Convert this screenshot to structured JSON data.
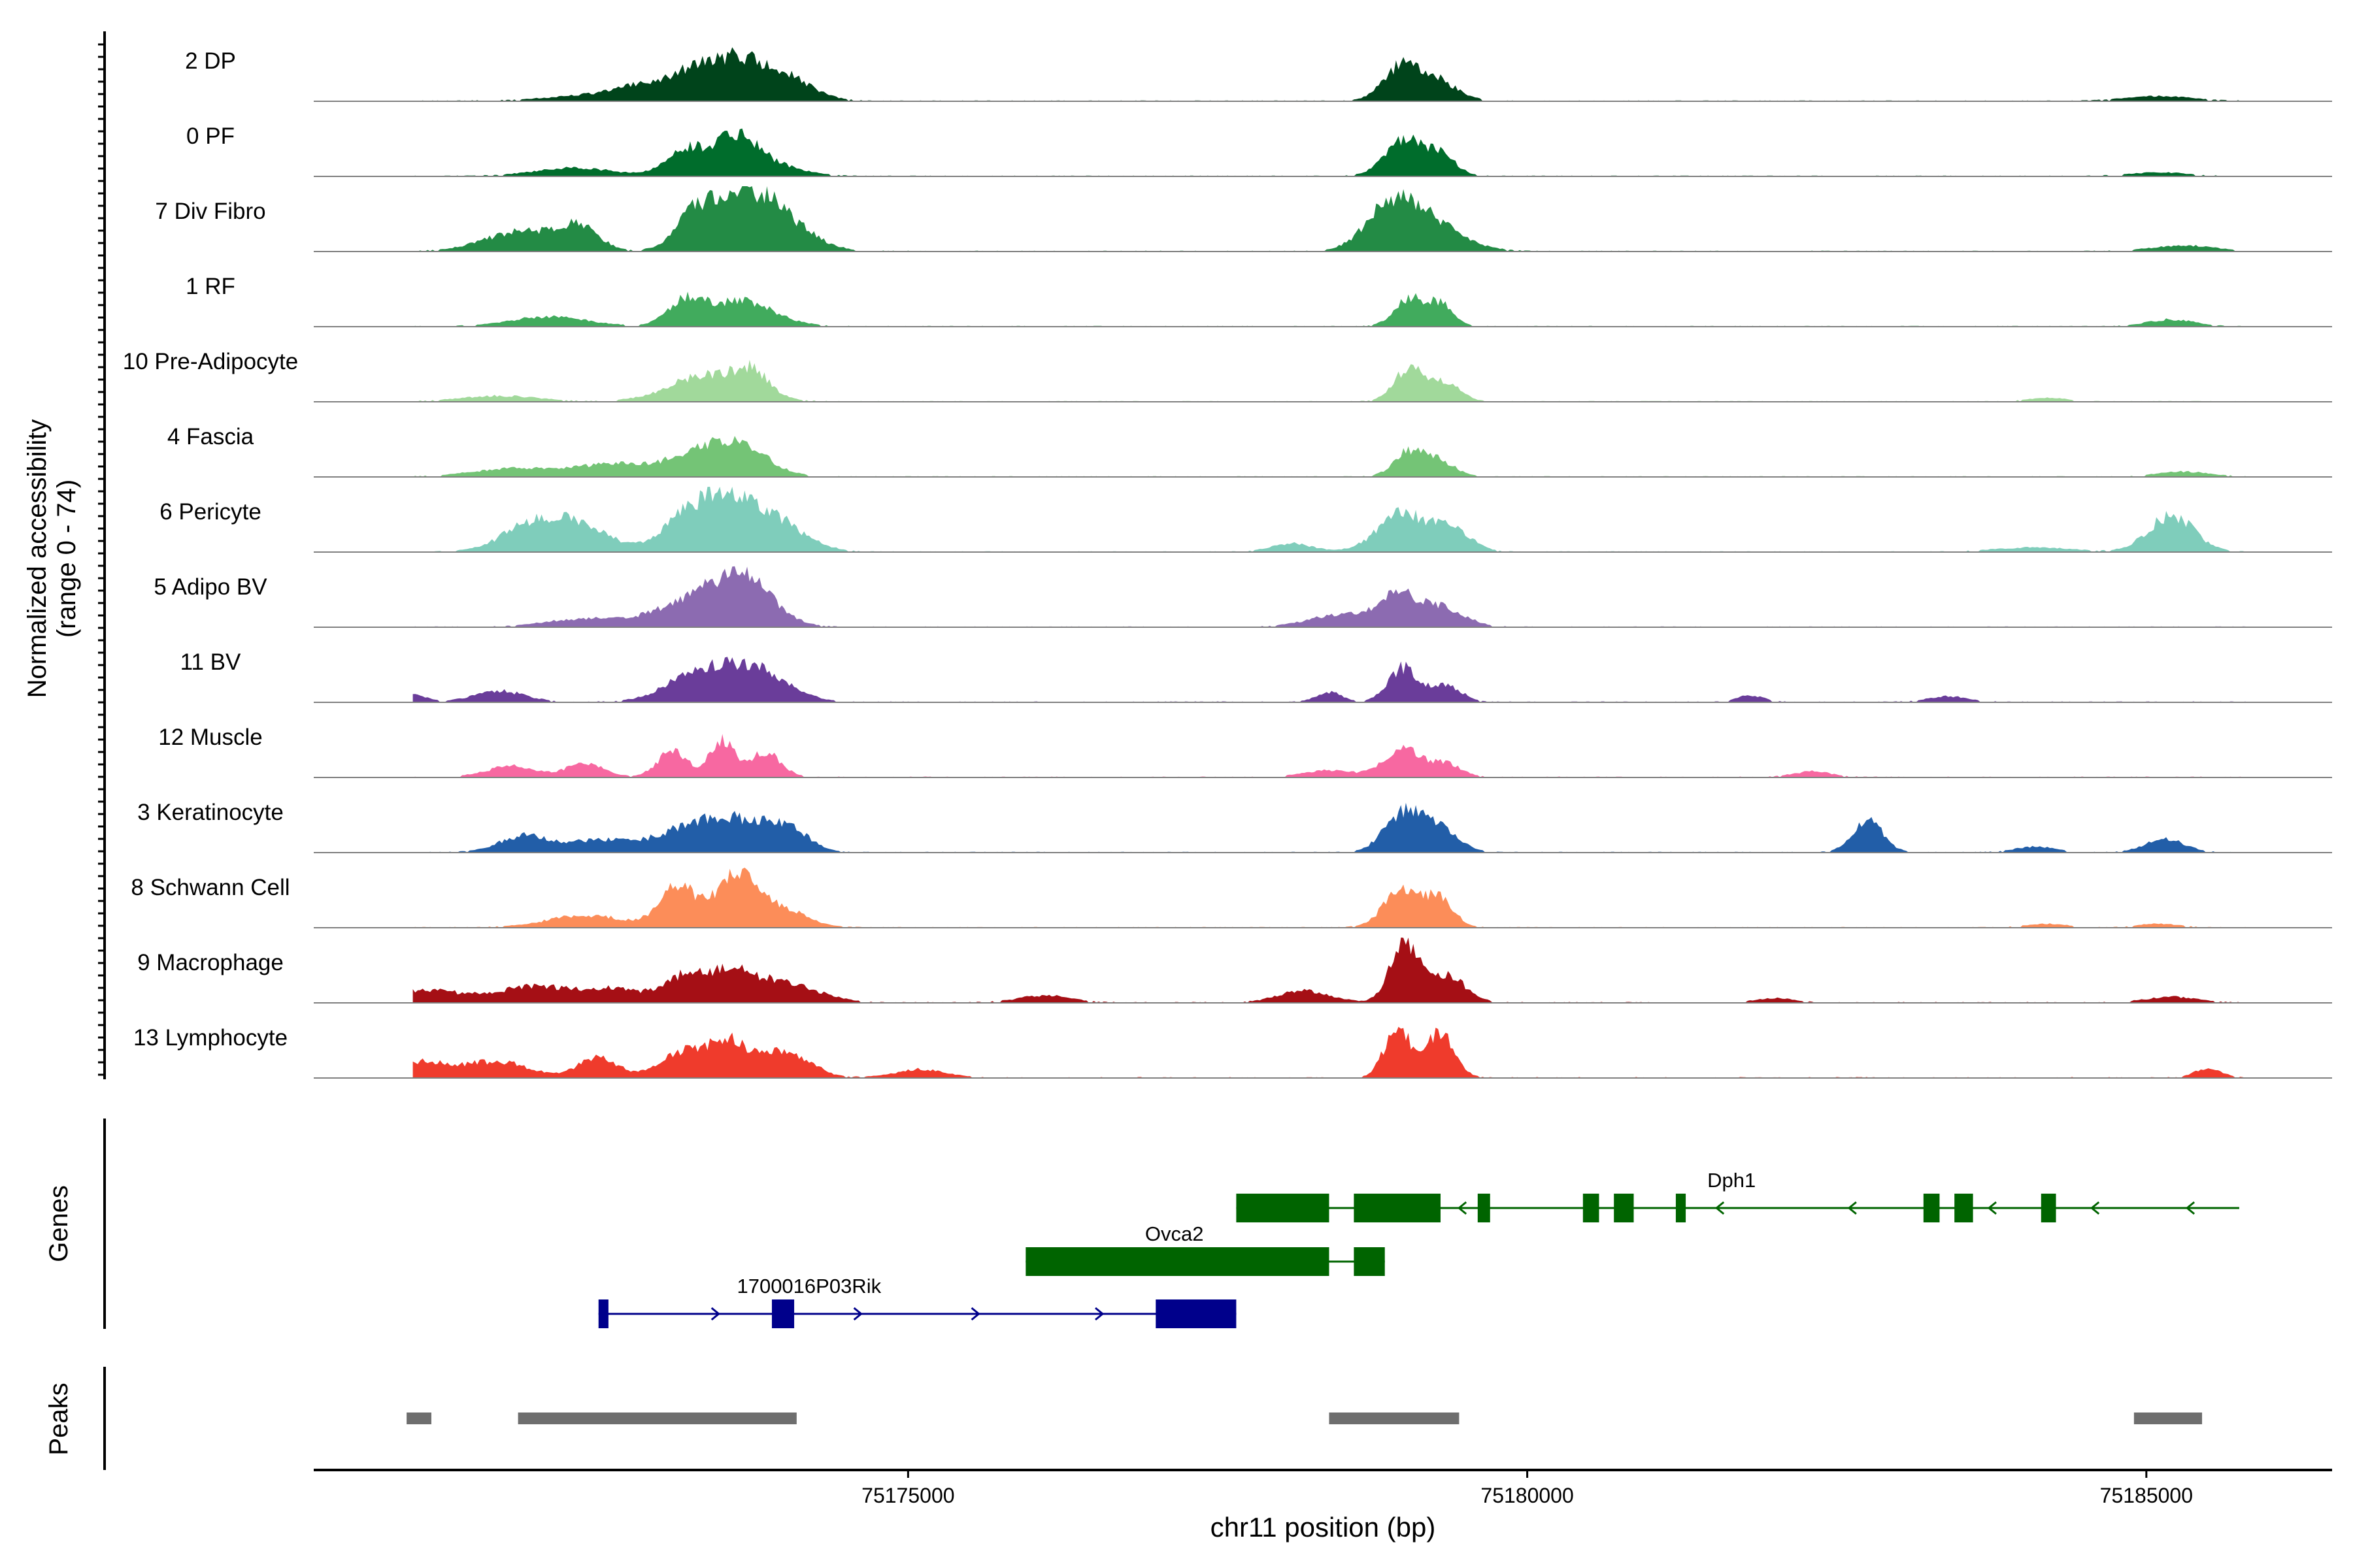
{
  "chart_data": {
    "type": "area",
    "title": "",
    "chromosome": "chr11",
    "xlabel": "chr11 position (bp)",
    "xlim": [
      75170200,
      75186500
    ],
    "x_ticks": [
      75175000,
      75180000,
      75185000
    ],
    "x_tick_labels": [
      "75175000",
      "75180000",
      "75185000"
    ],
    "ylabel_line1": "Normalized accessibility",
    "ylabel_line2": "(range 0 - 74)",
    "ylim": [
      0,
      74
    ],
    "genes_label": "Genes",
    "peaks_label": "Peaks",
    "tracks": [
      {
        "name": "2 DP",
        "color": "#00441b",
        "noise": 0.05,
        "peaks": [
          [
            75172600,
            400,
            0.1
          ],
          [
            75173000,
            250,
            0.22
          ],
          [
            75173300,
            140,
            0.35
          ],
          [
            75173600,
            160,
            0.52
          ],
          [
            75173950,
            230,
            0.42
          ],
          [
            75179000,
            150,
            0.55
          ],
          [
            75179300,
            150,
            0.26
          ],
          [
            75185100,
            250,
            0.07
          ]
        ]
      },
      {
        "name": "0 PF",
        "color": "#006d2c",
        "noise": 0.05,
        "peaks": [
          [
            75172300,
            300,
            0.12
          ],
          [
            75173200,
            160,
            0.4
          ],
          [
            75173600,
            170,
            0.5
          ],
          [
            75173850,
            250,
            0.18
          ],
          [
            75179000,
            150,
            0.55
          ],
          [
            75179300,
            120,
            0.3
          ],
          [
            75185100,
            220,
            0.05
          ]
        ]
      },
      {
        "name": "7 Div Fibro",
        "color": "#238b45",
        "noise": 0.08,
        "peaks": [
          [
            75171900,
            300,
            0.3
          ],
          [
            75172350,
            150,
            0.32
          ],
          [
            75173300,
            170,
            0.55
          ],
          [
            75173700,
            230,
            0.8
          ],
          [
            75174050,
            220,
            0.3
          ],
          [
            75178900,
            200,
            0.6
          ],
          [
            75179200,
            260,
            0.4
          ],
          [
            75185300,
            250,
            0.08
          ]
        ]
      },
      {
        "name": "1 RF",
        "color": "#41ab5d",
        "noise": 0.05,
        "peaks": [
          [
            75172100,
            300,
            0.14
          ],
          [
            75173200,
            140,
            0.35
          ],
          [
            75173650,
            260,
            0.38
          ],
          [
            75179050,
            120,
            0.42
          ],
          [
            75179300,
            100,
            0.32
          ],
          [
            75185200,
            180,
            0.1
          ]
        ]
      },
      {
        "name": "10 Pre-Adipocyte",
        "color": "#a1d99b",
        "noise": 0.05,
        "peaks": [
          [
            75171700,
            300,
            0.08
          ],
          [
            75173400,
            300,
            0.42
          ],
          [
            75173750,
            120,
            0.3
          ],
          [
            75179050,
            120,
            0.52
          ],
          [
            75179350,
            110,
            0.28
          ],
          [
            75184200,
            150,
            0.05
          ]
        ]
      },
      {
        "name": "4 Fascia",
        "color": "#74c476",
        "noise": 0.05,
        "peaks": [
          [
            75171800,
            300,
            0.12
          ],
          [
            75172600,
            300,
            0.18
          ],
          [
            75173300,
            250,
            0.32
          ],
          [
            75173650,
            220,
            0.42
          ],
          [
            75179050,
            120,
            0.38
          ],
          [
            75179300,
            120,
            0.22
          ],
          [
            75185300,
            200,
            0.07
          ]
        ]
      },
      {
        "name": "6 Pericyte",
        "color": "#7fcdbb",
        "noise": 0.06,
        "peaks": [
          [
            75172000,
            250,
            0.45
          ],
          [
            75172400,
            220,
            0.3
          ],
          [
            75173200,
            200,
            0.45
          ],
          [
            75173550,
            220,
            0.72
          ],
          [
            75173950,
            230,
            0.4
          ],
          [
            75178100,
            160,
            0.12
          ],
          [
            75179000,
            200,
            0.58
          ],
          [
            75179400,
            150,
            0.3
          ],
          [
            75184100,
            300,
            0.06
          ],
          [
            75185200,
            180,
            0.55
          ]
        ]
      },
      {
        "name": "5 Adipo BV",
        "color": "#8c6bb1",
        "noise": 0.05,
        "peaks": [
          [
            75172400,
            300,
            0.12
          ],
          [
            75173300,
            300,
            0.45
          ],
          [
            75173700,
            220,
            0.6
          ],
          [
            75178500,
            250,
            0.18
          ],
          [
            75178950,
            150,
            0.45
          ],
          [
            75179300,
            180,
            0.3
          ]
        ]
      },
      {
        "name": "11 BV",
        "color": "#6a3d9a",
        "noise": 0.12,
        "peaks": [
          [
            75171000,
            100,
            0.12
          ],
          [
            75171700,
            200,
            0.16
          ],
          [
            75173300,
            250,
            0.4
          ],
          [
            75173750,
            260,
            0.48
          ],
          [
            75178400,
            100,
            0.15
          ],
          [
            75179000,
            120,
            0.52
          ],
          [
            75179350,
            120,
            0.25
          ],
          [
            75181800,
            100,
            0.1
          ],
          [
            75183400,
            150,
            0.08
          ]
        ]
      },
      {
        "name": "12 Muscle",
        "color": "#f768a1",
        "noise": 0.12,
        "peaks": [
          [
            75171800,
            200,
            0.16
          ],
          [
            75172400,
            150,
            0.2
          ],
          [
            75173100,
            120,
            0.4
          ],
          [
            75173500,
            100,
            0.55
          ],
          [
            75173850,
            120,
            0.38
          ],
          [
            75178400,
            200,
            0.1
          ],
          [
            75179000,
            150,
            0.42
          ],
          [
            75179350,
            120,
            0.2
          ],
          [
            75182300,
            150,
            0.08
          ]
        ]
      },
      {
        "name": "3 Keratinocyte",
        "color": "#225ea8",
        "noise": 0.06,
        "peaks": [
          [
            75171900,
            200,
            0.24
          ],
          [
            75172500,
            250,
            0.18
          ],
          [
            75173200,
            250,
            0.32
          ],
          [
            75173650,
            250,
            0.45
          ],
          [
            75174050,
            150,
            0.3
          ],
          [
            75179000,
            150,
            0.6
          ],
          [
            75179300,
            150,
            0.32
          ],
          [
            75182750,
            120,
            0.48
          ],
          [
            75184100,
            150,
            0.08
          ],
          [
            75185150,
            150,
            0.2
          ]
        ]
      },
      {
        "name": "8 Schwann Cell",
        "color": "#fc8d59",
        "noise": 0.06,
        "peaks": [
          [
            75172400,
            300,
            0.18
          ],
          [
            75173150,
            150,
            0.62
          ],
          [
            75173600,
            150,
            0.75
          ],
          [
            75173950,
            200,
            0.3
          ],
          [
            75179000,
            150,
            0.58
          ],
          [
            75179300,
            110,
            0.4
          ],
          [
            75184200,
            150,
            0.05
          ],
          [
            75185100,
            150,
            0.05
          ]
        ]
      },
      {
        "name": "9 Macrophage",
        "color": "#a50f15",
        "noise": 0.14,
        "peaks": [
          [
            75171100,
            300,
            0.18
          ],
          [
            75172000,
            300,
            0.24
          ],
          [
            75172600,
            200,
            0.18
          ],
          [
            75173200,
            200,
            0.38
          ],
          [
            75173600,
            200,
            0.42
          ],
          [
            75174050,
            250,
            0.25
          ],
          [
            75176100,
            200,
            0.1
          ],
          [
            75178200,
            200,
            0.18
          ],
          [
            75179000,
            110,
            0.95
          ],
          [
            75179350,
            150,
            0.4
          ],
          [
            75182000,
            150,
            0.06
          ],
          [
            75185200,
            200,
            0.08
          ]
        ]
      },
      {
        "name": "13 Lymphocyte",
        "color": "#ef3b2c",
        "noise": 0.16,
        "peaks": [
          [
            75171000,
            300,
            0.24
          ],
          [
            75171700,
            250,
            0.22
          ],
          [
            75172500,
            150,
            0.32
          ],
          [
            75173200,
            200,
            0.38
          ],
          [
            75173550,
            150,
            0.48
          ],
          [
            75174000,
            200,
            0.4
          ],
          [
            75175100,
            200,
            0.12
          ],
          [
            75178950,
            100,
            0.78
          ],
          [
            75179300,
            110,
            0.7
          ],
          [
            75185500,
            100,
            0.15
          ]
        ]
      }
    ],
    "genes": [
      {
        "name": "Dph1",
        "strand": "-",
        "color": "#006400",
        "row": 0,
        "start": 75177650,
        "end": 75185750,
        "label_x": 75181650,
        "exons": [
          [
            75177650,
            75178400
          ],
          [
            75178600,
            75179300
          ],
          [
            75179600,
            75179700
          ],
          [
            75180450,
            75180580
          ],
          [
            75180700,
            75180860
          ],
          [
            75181200,
            75181280
          ],
          [
            75183200,
            75183330
          ],
          [
            75183450,
            75183600
          ],
          [
            75184150,
            75184270
          ]
        ],
        "arrows": [
          75179470,
          75181550,
          75182620,
          75183750,
          75184580,
          75185350
        ]
      },
      {
        "name": "Ovca2",
        "strand": "+",
        "color": "#006400",
        "row": 1,
        "start": 75175950,
        "end": 75178850,
        "label_x": 75177150,
        "exons": [
          [
            75175950,
            75178400
          ],
          [
            75178600,
            75178850
          ]
        ],
        "arrows": []
      },
      {
        "name": "1700016P03Rik",
        "strand": "+",
        "color": "#00008b",
        "row": 2,
        "start": 75172500,
        "end": 75177650,
        "label_x": 75174200,
        "exons": [
          [
            75172500,
            75172580
          ],
          [
            75173900,
            75174080
          ],
          [
            75177000,
            75177650
          ]
        ],
        "arrows": [
          75173450,
          75174600,
          75175550,
          75176550
        ]
      }
    ],
    "peaks_regions": [
      [
        75170950,
        75171150
      ],
      [
        75171850,
        75174100
      ],
      [
        75178400,
        75179450
      ],
      [
        75184900,
        75185450
      ]
    ]
  }
}
